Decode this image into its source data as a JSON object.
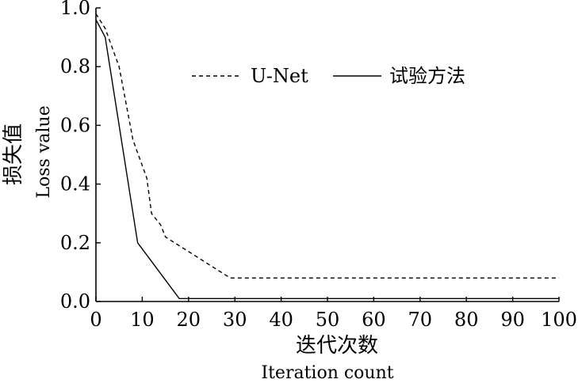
{
  "chart_data": {
    "type": "line",
    "xlabel": "迭代次数",
    "xlabel_en": "Iteration count",
    "ylabel": "损失值",
    "ylabel_en": "Loss value",
    "xlim": [
      0,
      100
    ],
    "ylim": [
      0.0,
      1.0
    ],
    "xticks": [
      "0",
      "10",
      "20",
      "30",
      "40",
      "50",
      "60",
      "70",
      "80",
      "90",
      "100"
    ],
    "yticks": [
      "0.0",
      "0.2",
      "0.4",
      "0.6",
      "0.8",
      "1.0"
    ],
    "grid": false,
    "legend_position": "top-center",
    "series": [
      {
        "name": "U-Net",
        "style": "dashed",
        "color": "#000000",
        "x": [
          0,
          2,
          5,
          8,
          11,
          12,
          14,
          15,
          20,
          25,
          29,
          40,
          60,
          80,
          100
        ],
        "y": [
          0.98,
          0.93,
          0.8,
          0.55,
          0.42,
          0.3,
          0.26,
          0.22,
          0.17,
          0.12,
          0.08,
          0.08,
          0.08,
          0.08,
          0.08
        ]
      },
      {
        "name": "试验方法",
        "style": "solid",
        "color": "#000000",
        "x": [
          0,
          2,
          9,
          18,
          30,
          50,
          75,
          100
        ],
        "y": [
          0.96,
          0.9,
          0.2,
          0.01,
          0.01,
          0.01,
          0.01,
          0.01
        ]
      }
    ]
  }
}
